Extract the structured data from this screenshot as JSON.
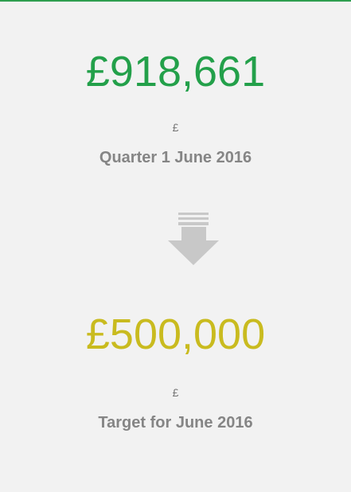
{
  "actual": {
    "value": "£918,661",
    "unit": "£",
    "label": "Quarter 1 June 2016"
  },
  "target": {
    "value": "£500,000",
    "unit": "£",
    "label": "Target for June 2016"
  }
}
